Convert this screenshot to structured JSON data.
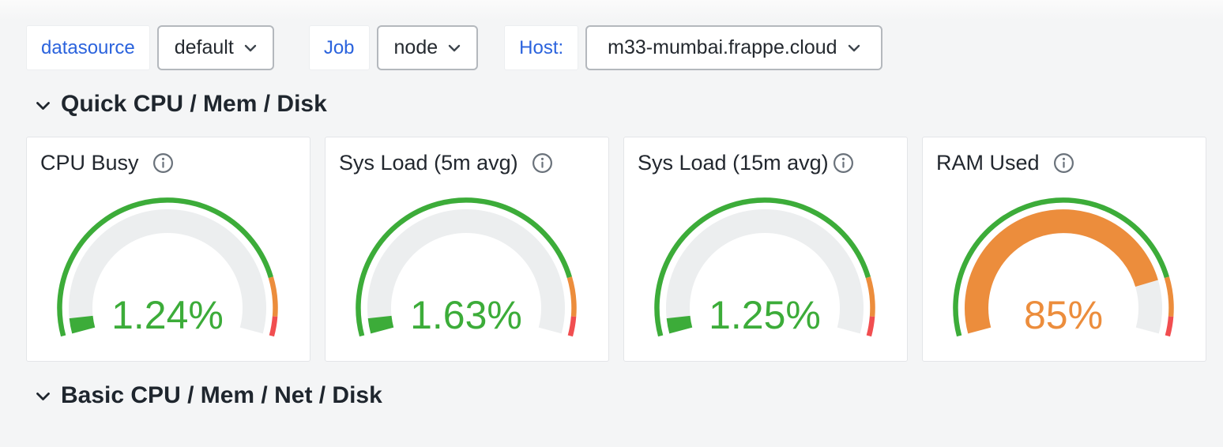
{
  "toolbar": {
    "datasource": {
      "label": "datasource",
      "value": "default"
    },
    "job": {
      "label": "Job",
      "value": "node"
    },
    "host": {
      "label": "Host:",
      "value": "m33-mumbai.frappe.cloud"
    }
  },
  "sections": {
    "quick": "Quick CPU / Mem / Disk",
    "basic": "Basic CPU / Mem / Net / Disk"
  },
  "chart_data": [
    {
      "type": "gauge",
      "title": "CPU Busy",
      "value": 1.24,
      "display": "1.24%",
      "unit": "%",
      "min": 0,
      "max": 100,
      "sweep_deg": 210,
      "thresholds": [
        {
          "from": 0,
          "name": "green",
          "color": "#3cac39"
        },
        {
          "from": 85,
          "name": "orange",
          "color": "#ec8d3c"
        },
        {
          "from": 95,
          "name": "red",
          "color": "#f14e50"
        }
      ]
    },
    {
      "type": "gauge",
      "title": "Sys Load (5m avg)",
      "value": 1.63,
      "display": "1.63%",
      "unit": "%",
      "min": 0,
      "max": 100,
      "sweep_deg": 210,
      "thresholds": [
        {
          "from": 0,
          "name": "green",
          "color": "#3cac39"
        },
        {
          "from": 85,
          "name": "orange",
          "color": "#ec8d3c"
        },
        {
          "from": 95,
          "name": "red",
          "color": "#f14e50"
        }
      ]
    },
    {
      "type": "gauge",
      "title": "Sys Load (15m avg)",
      "value": 1.25,
      "display": "1.25%",
      "unit": "%",
      "min": 0,
      "max": 100,
      "sweep_deg": 210,
      "thresholds": [
        {
          "from": 0,
          "name": "green",
          "color": "#3cac39"
        },
        {
          "from": 85,
          "name": "orange",
          "color": "#ec8d3c"
        },
        {
          "from": 95,
          "name": "red",
          "color": "#f14e50"
        }
      ]
    },
    {
      "type": "gauge",
      "title": "RAM Used",
      "value": 85,
      "display": "85%",
      "unit": "%",
      "min": 0,
      "max": 100,
      "sweep_deg": 210,
      "thresholds": [
        {
          "from": 0,
          "name": "green",
          "color": "#3cac39"
        },
        {
          "from": 85,
          "name": "orange",
          "color": "#ec8d3c"
        },
        {
          "from": 95,
          "name": "red",
          "color": "#f14e50"
        }
      ]
    }
  ],
  "colors": {
    "link_blue": "#2b63dd",
    "text_dark": "#22272e",
    "green": "#3cac39",
    "orange": "#ec8d3c",
    "red": "#f14e50",
    "gauge_track": "#eceeef",
    "page_bg": "#f4f5f6",
    "panel_bg": "#ffffff",
    "panel_border": "#e3e5e8",
    "input_border": "#b4b8bd",
    "icon_gray": "#6a727b"
  }
}
